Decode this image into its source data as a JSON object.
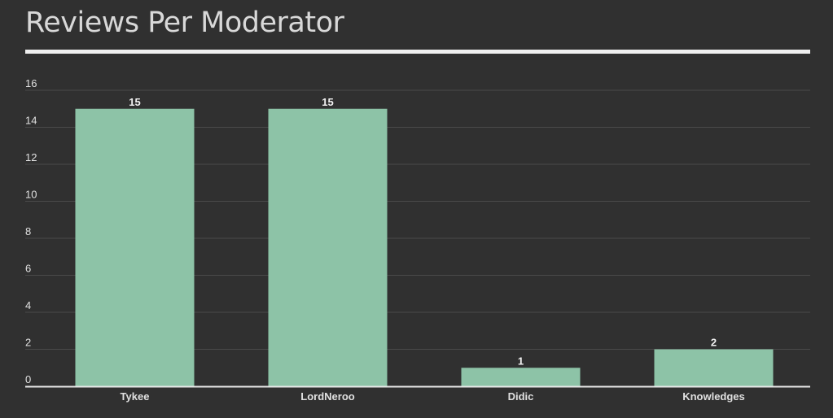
{
  "page": {
    "title": "Reviews Per Moderator"
  },
  "colors": {
    "background": "#303030",
    "bar": "#8dc3a7",
    "gridline": "#4a4a4a",
    "axis": "#e8e8e8",
    "title_rule": "#efefef"
  },
  "chart_data": {
    "type": "bar",
    "title": "Reviews Per Moderator",
    "xlabel": "",
    "ylabel": "",
    "categories": [
      "Tykee",
      "LordNeroo",
      "Didic",
      "Knowledges"
    ],
    "values": [
      15,
      15,
      1,
      2
    ],
    "ylim": [
      0,
      16
    ],
    "yticks": [
      0,
      2,
      4,
      6,
      8,
      10,
      12,
      14,
      16
    ],
    "grid": true,
    "legend": "none",
    "data_labels": true
  }
}
